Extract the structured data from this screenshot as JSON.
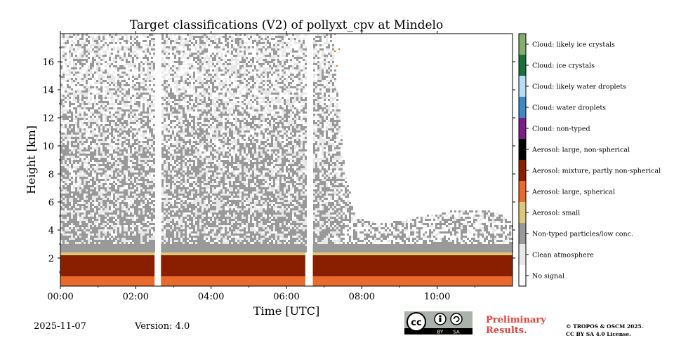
{
  "chart_data": {
    "type": "heatmap",
    "title": "Target classifications (V2) of pollyxt_cpv at Mindelo",
    "xlabel": "Time [UTC]",
    "ylabel": "Height [km]",
    "x_unit": "hours UTC",
    "xlim": [
      0,
      12
    ],
    "ylim": [
      0,
      18
    ],
    "x_ticks": [
      0,
      2,
      4,
      6,
      8,
      10
    ],
    "x_tick_labels": [
      "00:00",
      "02:00",
      "04:00",
      "06:00",
      "08:00",
      "10:00"
    ],
    "y_ticks": [
      2,
      4,
      6,
      8,
      10,
      12,
      14,
      16
    ],
    "y_tick_labels": [
      "2",
      "4",
      "6",
      "8",
      "10",
      "12",
      "14",
      "16"
    ],
    "data_gaps_hours": [
      [
        2.5,
        2.67
      ],
      [
        6.5,
        6.7
      ]
    ],
    "noise_top_km": [
      [
        0.0,
        18
      ],
      [
        2.5,
        18
      ],
      [
        4.0,
        18
      ],
      [
        6.5,
        18
      ],
      [
        7.2,
        18
      ],
      [
        7.5,
        9
      ],
      [
        7.8,
        5
      ],
      [
        8.5,
        4.5
      ],
      [
        9.5,
        5
      ],
      [
        10.5,
        5.5
      ],
      [
        11.5,
        5.5
      ],
      [
        12.0,
        4.5
      ]
    ],
    "layers": [
      {
        "class": "Aerosol: large, spherical",
        "from_km": 0.0,
        "to_km": 0.7
      },
      {
        "class": "Aerosol: mixture, partly non-spherical",
        "from_km": 0.7,
        "to_km": 2.2
      },
      {
        "class": "Aerosol: small",
        "from_km": 2.2,
        "to_km": 2.4
      },
      {
        "class": "Non-typed particles/low conc.",
        "from_km": 2.4,
        "to_km": 3.0
      }
    ],
    "legend": {
      "placement": "right colorbar",
      "entries": [
        {
          "label": "Cloud: likely ice crystals",
          "color": "#82ad6b"
        },
        {
          "label": "Cloud: ice crystals",
          "color": "#1b6f3a"
        },
        {
          "label": "Cloud: likely water droplets",
          "color": "#b7dcf5"
        },
        {
          "label": "Cloud: water droplets",
          "color": "#3d89c6"
        },
        {
          "label": "Cloud: non-typed",
          "color": "#7c1d87"
        },
        {
          "label": "Aerosol: large, non-spherical",
          "color": "#000000"
        },
        {
          "label": "Aerosol: mixture, partly non-spherical",
          "color": "#8a1f00"
        },
        {
          "label": "Aerosol: large, spherical",
          "color": "#e86a2d"
        },
        {
          "label": "Aerosol: small",
          "color": "#dcc87a"
        },
        {
          "label": "Non-typed particles/low conc.",
          "color": "#999999"
        },
        {
          "label": "Clean atmosphere",
          "color": "#e8e8e8"
        },
        {
          "label": "No signal",
          "color": "#ffffff"
        }
      ]
    }
  },
  "footer": {
    "date": "2025-11-07",
    "version": "Version: 4.0",
    "preliminary_line1": "Preliminary",
    "preliminary_line2": "Results.",
    "copyright_line1": "© TROPOS & OSCM 2025.",
    "copyright_line2": "CC BY SA 4.0 License.",
    "badge_by": "BY",
    "badge_sa": "SA",
    "badge_cc": "cc"
  }
}
